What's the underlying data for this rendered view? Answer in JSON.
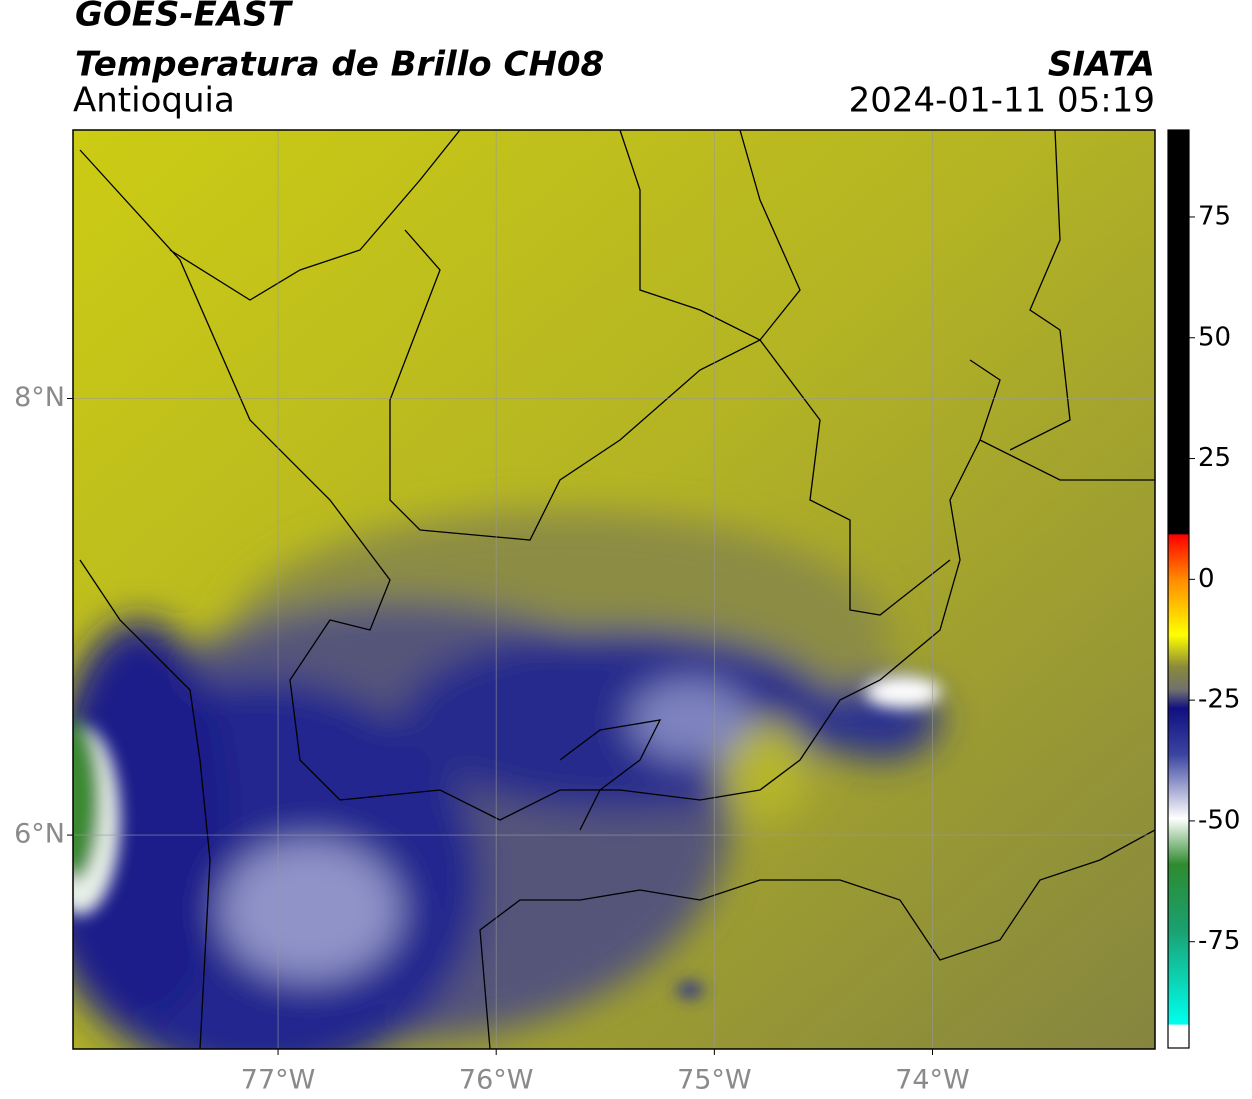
{
  "header": {
    "title": "GOES-EAST",
    "subtitle": "Temperatura de Brillo CH08",
    "region": "Antioquia",
    "source": "SIATA",
    "datetime": "2024-01-11 05:19"
  },
  "map": {
    "xlim": [
      -77.94,
      -72.98
    ],
    "ylim": [
      5.02,
      9.23
    ],
    "xticks": [
      {
        "value": -77,
        "label": "77°W"
      },
      {
        "value": -76,
        "label": "76°W"
      },
      {
        "value": -75,
        "label": "75°W"
      },
      {
        "value": -74,
        "label": "74°W"
      }
    ],
    "yticks": [
      {
        "value": 6,
        "label": "6°N"
      },
      {
        "value": 8,
        "label": "8°N"
      }
    ],
    "grid": true
  },
  "colorbar": {
    "lim": [
      -97,
      93
    ],
    "ticks": [
      75,
      50,
      25,
      0,
      -25,
      -50,
      -75
    ]
  }
}
